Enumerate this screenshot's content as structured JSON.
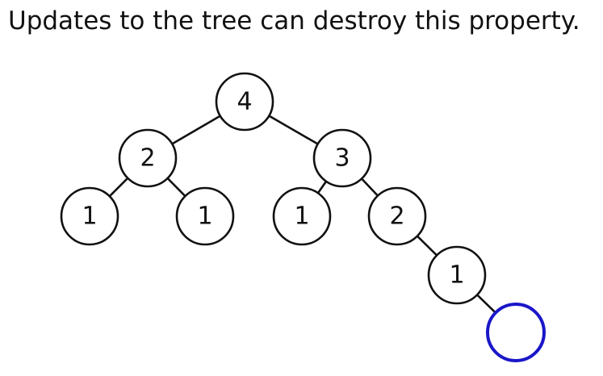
{
  "slide": {
    "title": "Updates to the tree can destroy this property."
  },
  "tree": {
    "nodes": [
      {
        "id": "root",
        "label": "4"
      },
      {
        "id": "n2",
        "label": "2"
      },
      {
        "id": "n3",
        "label": "3"
      },
      {
        "id": "n2-left",
        "label": "1"
      },
      {
        "id": "n2-right",
        "label": "1"
      },
      {
        "id": "n3-left",
        "label": "1"
      },
      {
        "id": "n3-right",
        "label": "2"
      },
      {
        "id": "n3-right-right",
        "label": "1"
      },
      {
        "id": "new-node",
        "label": "",
        "highlight": true
      }
    ],
    "edges": [
      [
        "root",
        "n2"
      ],
      [
        "root",
        "n3"
      ],
      [
        "n2",
        "n2-left"
      ],
      [
        "n2",
        "n2-right"
      ],
      [
        "n3",
        "n3-left"
      ],
      [
        "n3",
        "n3-right"
      ],
      [
        "n3-right",
        "n3-right-right"
      ],
      [
        "n3-right-right",
        "new-node"
      ]
    ],
    "colors": {
      "stroke": "#111111",
      "highlight": "#1a16c8"
    }
  }
}
